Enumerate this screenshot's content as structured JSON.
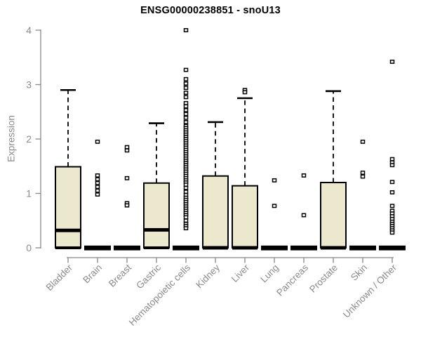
{
  "title": "ENSG00000238851 - snoU13",
  "chart_data": {
    "type": "box",
    "title": "ENSG00000238851 - snoU13",
    "xlabel": "",
    "ylabel": "Expression",
    "ylim": [
      0,
      4
    ],
    "yticks": [
      0,
      1,
      2,
      3,
      4
    ],
    "grid": false,
    "legend": false,
    "categories": [
      "Bladder",
      "Brain",
      "Breast",
      "Gastric",
      "Hematopoietic cells",
      "Kidney",
      "Liver",
      "Lung",
      "Pancreas",
      "Prostate",
      "Skin",
      "Unknown / Other"
    ],
    "boxes": [
      {
        "label": "Bladder",
        "q1": 0,
        "median": 0.32,
        "q3": 1.49,
        "whisker_low": 0,
        "whisker_high": 2.9,
        "outliers": []
      },
      {
        "label": "Brain",
        "q1": 0,
        "median": 0,
        "q3": 0,
        "whisker_low": 0,
        "whisker_high": 0,
        "outliers": [
          1.95,
          1.33,
          1.26,
          1.19,
          1.12,
          1.05,
          0.98
        ]
      },
      {
        "label": "Breast",
        "q1": 0,
        "median": 0,
        "q3": 0,
        "whisker_low": 0,
        "whisker_high": 0,
        "outliers": [
          1.85,
          1.79,
          1.28,
          0.82,
          0.78
        ]
      },
      {
        "label": "Gastric",
        "q1": 0,
        "median": 0.33,
        "q3": 1.19,
        "whisker_low": 0,
        "whisker_high": 2.29,
        "outliers": []
      },
      {
        "label": "Hematopoietic cells",
        "q1": 0,
        "median": 0,
        "q3": 0,
        "whisker_low": 0,
        "whisker_high": 0,
        "outliers": [
          4.0,
          3.27,
          3.1,
          3.02,
          2.94,
          2.85,
          2.77,
          2.66,
          2.6,
          2.53,
          2.46,
          2.39,
          2.31,
          2.24,
          2.2,
          2.16,
          2.12,
          2.08,
          2.04,
          2.0,
          1.96,
          1.92,
          1.88,
          1.84,
          1.8,
          1.76,
          1.72,
          1.68,
          1.64,
          1.6,
          1.56,
          1.52,
          1.48,
          1.44,
          1.4,
          1.36,
          1.32,
          1.28,
          1.24,
          1.2,
          1.16,
          1.1,
          1.03,
          0.97,
          0.92,
          0.88,
          0.84,
          0.8,
          0.76,
          0.72,
          0.68,
          0.64,
          0.6,
          0.56,
          0.5,
          0.44,
          0.4,
          0.36
        ]
      },
      {
        "label": "Kidney",
        "q1": 0,
        "median": 0,
        "q3": 1.32,
        "whisker_low": 0,
        "whisker_high": 2.31,
        "outliers": []
      },
      {
        "label": "Liver",
        "q1": 0,
        "median": 0,
        "q3": 1.14,
        "whisker_low": 0,
        "whisker_high": 2.75,
        "outliers": [
          2.9,
          2.86
        ]
      },
      {
        "label": "Lung",
        "q1": 0,
        "median": 0,
        "q3": 0,
        "whisker_low": 0,
        "whisker_high": 0,
        "outliers": [
          1.24,
          0.77
        ]
      },
      {
        "label": "Pancreas",
        "q1": 0,
        "median": 0,
        "q3": 0,
        "whisker_low": 0,
        "whisker_high": 0,
        "outliers": [
          1.33,
          0.6
        ]
      },
      {
        "label": "Prostate",
        "q1": 0,
        "median": 0,
        "q3": 1.2,
        "whisker_low": 0,
        "whisker_high": 2.88,
        "outliers": []
      },
      {
        "label": "Skin",
        "q1": 0,
        "median": 0,
        "q3": 0,
        "whisker_low": 0,
        "whisker_high": 0,
        "outliers": [
          1.95,
          1.38,
          1.31
        ]
      },
      {
        "label": "Unknown / Other",
        "q1": 0,
        "median": 0,
        "q3": 0,
        "whisker_low": 0,
        "whisker_high": 0,
        "outliers": [
          3.42,
          1.63,
          1.57,
          1.52,
          1.21,
          1.02,
          0.77,
          0.68,
          0.63,
          0.58,
          0.53,
          0.48,
          0.44,
          0.4,
          0.36,
          0.32,
          0.28
        ]
      }
    ]
  },
  "colors": {
    "background": "#ffffff",
    "box_fill": "#ece8cd",
    "box_border": "#000000",
    "median": "#000000",
    "whisker": "#000000",
    "outlier_stroke": "#000000",
    "outlier_fill": "#ffffff",
    "axis": "#888888",
    "tick_label": "#8a8a8a",
    "title": "#000000"
  }
}
